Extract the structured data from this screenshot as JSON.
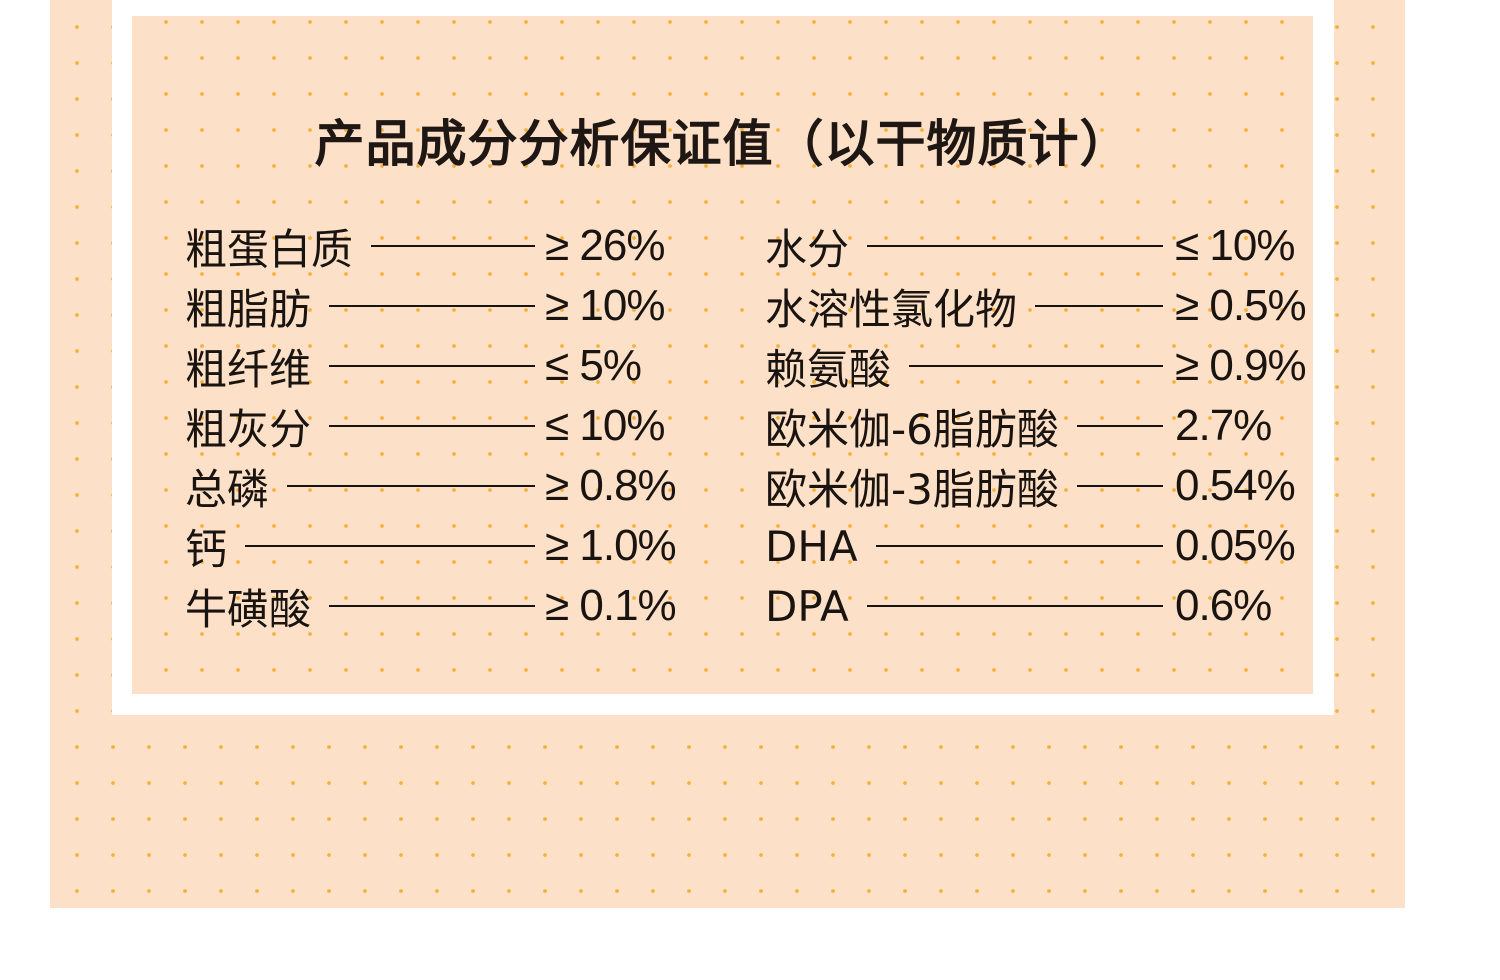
{
  "title": "产品成分分析保证值（以干物质计）",
  "left_column": [
    {
      "name": "粗蛋白质",
      "value": "≥ 26%"
    },
    {
      "name": "粗脂肪",
      "value": "≥ 10%"
    },
    {
      "name": "粗纤维",
      "value": "≤ 5%"
    },
    {
      "name": "粗灰分",
      "value": "≤ 10%"
    },
    {
      "name": "总磷",
      "value": "≥ 0.8%"
    },
    {
      "name": "钙",
      "value": "≥ 1.0%"
    },
    {
      "name": "牛磺酸",
      "value": "≥ 0.1%"
    }
  ],
  "right_column": [
    {
      "name": "水分",
      "value": "≤ 10%"
    },
    {
      "name": "水溶性氯化物",
      "value": "≥ 0.5%"
    },
    {
      "name": "赖氨酸",
      "value": "≥ 0.9%"
    },
    {
      "name": "欧米伽-6脂肪酸",
      "value": "2.7%"
    },
    {
      "name": "欧米伽-3脂肪酸",
      "value": "0.54%"
    },
    {
      "name": "DHA",
      "value": "0.05%"
    },
    {
      "name": "DPA",
      "value": "0.6%"
    }
  ],
  "colors": {
    "background": "#fde0c8",
    "dots": "#f4b23c",
    "frame": "#ffffff",
    "text": "#1a1411"
  }
}
